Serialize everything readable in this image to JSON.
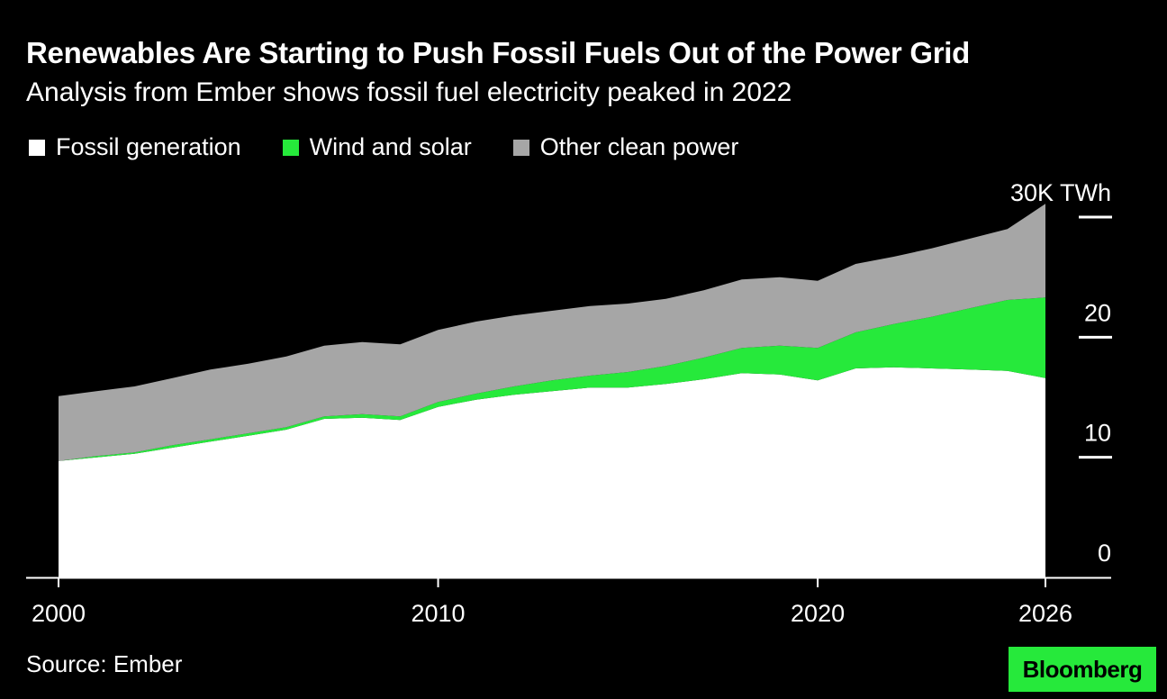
{
  "title": "Renewables Are Starting to Push Fossil Fuels Out of the Power Grid",
  "subtitle": "Analysis from Ember shows fossil fuel electricity peaked in 2022",
  "legend": [
    {
      "label": "Fossil generation",
      "color": "#ffffff"
    },
    {
      "label": "Wind and solar",
      "color": "#26e93b"
    },
    {
      "label": "Other clean power",
      "color": "#a6a6a6"
    }
  ],
  "source": "Source: Ember",
  "logo": "Bloomberg",
  "chart_data": {
    "type": "area",
    "stacked": true,
    "x": [
      2000,
      2001,
      2002,
      2003,
      2004,
      2005,
      2006,
      2007,
      2008,
      2009,
      2010,
      2011,
      2012,
      2013,
      2014,
      2015,
      2016,
      2017,
      2018,
      2019,
      2020,
      2021,
      2022,
      2023,
      2024,
      2025,
      2026
    ],
    "series": [
      {
        "name": "Fossil generation",
        "color": "#ffffff",
        "values": [
          9.7,
          10.0,
          10.3,
          10.8,
          11.3,
          11.8,
          12.3,
          13.2,
          13.3,
          13.1,
          14.2,
          14.8,
          15.2,
          15.5,
          15.8,
          15.8,
          16.1,
          16.5,
          17.0,
          16.9,
          16.4,
          17.4,
          17.5,
          17.4,
          17.3,
          17.2,
          16.6
        ]
      },
      {
        "name": "Wind and solar",
        "color": "#26e93b",
        "values": [
          0.0,
          0.1,
          0.1,
          0.2,
          0.2,
          0.2,
          0.2,
          0.2,
          0.3,
          0.3,
          0.4,
          0.5,
          0.7,
          0.9,
          1.0,
          1.3,
          1.5,
          1.8,
          2.1,
          2.4,
          2.7,
          3.0,
          3.6,
          4.3,
          5.1,
          5.9,
          6.7
        ]
      },
      {
        "name": "Other clean power",
        "color": "#a6a6a6",
        "values": [
          5.4,
          5.4,
          5.5,
          5.6,
          5.8,
          5.8,
          5.9,
          5.9,
          6.0,
          6.0,
          6.0,
          6.0,
          5.9,
          5.8,
          5.8,
          5.7,
          5.6,
          5.6,
          5.7,
          5.7,
          5.6,
          5.7,
          5.6,
          5.7,
          5.8,
          5.9,
          7.8
        ]
      }
    ],
    "y_ticks": [
      {
        "value": 30,
        "label": "30K TWh"
      },
      {
        "value": 20,
        "label": "20"
      },
      {
        "value": 10,
        "label": "10"
      },
      {
        "value": 0,
        "label": "0"
      }
    ],
    "x_ticks": [
      2000,
      2010,
      2020,
      2026
    ],
    "xlim": [
      2000,
      2026
    ],
    "ylim": [
      0,
      30
    ],
    "y_axis_side": "right",
    "grid": false
  }
}
